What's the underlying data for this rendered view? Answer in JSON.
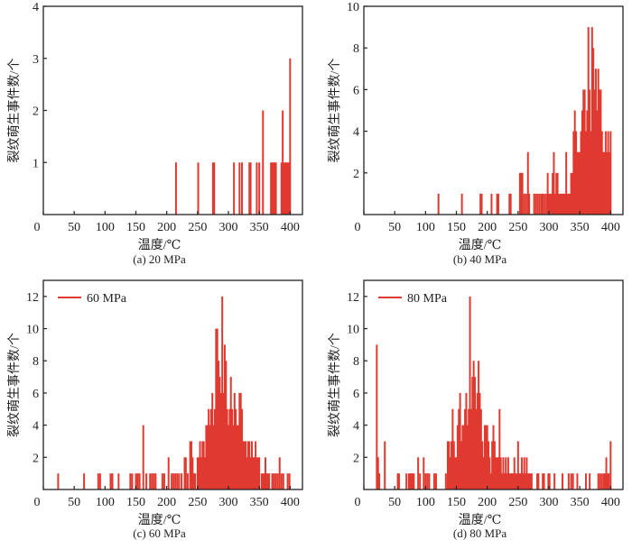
{
  "figure": {
    "bar_color": "#e03a30",
    "axis_color": "#222222"
  },
  "chart_data": [
    {
      "type": "bar",
      "id": "a",
      "caption": "(a) 20 MPa",
      "title": "",
      "xlabel": "温度/℃",
      "ylabel": "裂纹萌生事件数/个",
      "xlim": [
        0,
        420
      ],
      "ylim": [
        0,
        4
      ],
      "xticks": [
        0,
        50,
        100,
        150,
        200,
        250,
        300,
        350,
        400
      ],
      "yticks": [
        1,
        2,
        3,
        4
      ],
      "legend": null,
      "x": [
        215,
        251,
        275,
        277,
        309,
        318,
        322,
        334,
        336,
        346,
        350,
        356,
        369,
        371,
        373,
        375,
        377,
        386,
        388,
        390,
        392,
        394,
        396,
        398,
        400
      ],
      "values": [
        1,
        1,
        1,
        1,
        1,
        1,
        1,
        1,
        1,
        1,
        1,
        2,
        1,
        1,
        1,
        1,
        1,
        1,
        2,
        1,
        1,
        1,
        1,
        1,
        3
      ]
    },
    {
      "type": "bar",
      "id": "b",
      "caption": "(b) 40 MPa",
      "title": "",
      "xlabel": "温度/℃",
      "ylabel": "裂纹萌生事件数/个",
      "xlim": [
        0,
        420
      ],
      "ylim": [
        0,
        10
      ],
      "xticks": [
        0,
        50,
        100,
        150,
        200,
        250,
        300,
        350,
        400
      ],
      "yticks": [
        2,
        4,
        6,
        8,
        10
      ],
      "legend": null,
      "x": [
        121,
        159,
        189,
        191,
        207,
        216,
        218,
        236,
        238,
        253,
        255,
        257,
        260,
        263,
        266,
        268,
        276,
        279,
        282,
        285,
        288,
        290,
        293,
        296,
        298,
        300,
        302,
        304,
        306,
        308,
        310,
        312,
        314,
        316,
        318,
        320,
        322,
        324,
        326,
        328,
        330,
        332,
        334,
        336,
        338,
        340,
        342,
        344,
        346,
        348,
        350,
        352,
        354,
        356,
        358,
        360,
        362,
        364,
        366,
        368,
        370,
        372,
        374,
        376,
        378,
        380,
        382,
        384,
        386,
        388,
        390,
        392,
        394,
        396,
        398,
        400
      ],
      "values": [
        1,
        1,
        1,
        1,
        1,
        1,
        1,
        1,
        1,
        2,
        2,
        2,
        1,
        1,
        3,
        1,
        1,
        1,
        1,
        1,
        1,
        1,
        1,
        1,
        2,
        1,
        1,
        1,
        2,
        3,
        1,
        2,
        2,
        1,
        1,
        1,
        1,
        1,
        1,
        3,
        1,
        1,
        1,
        2,
        2,
        4,
        5,
        4,
        3,
        3,
        3,
        4,
        5,
        6,
        6,
        4,
        5,
        9,
        6,
        4,
        9,
        8,
        6,
        7,
        5,
        7,
        6,
        6,
        4,
        3,
        3,
        4,
        3,
        4,
        3,
        4
      ]
    },
    {
      "type": "bar",
      "id": "c",
      "caption": "(c) 60 MPa",
      "title": "",
      "xlabel": "温度/℃",
      "ylabel": "裂纹萌生事件数/个",
      "xlim": [
        0,
        420
      ],
      "ylim": [
        0,
        13
      ],
      "xticks": [
        0,
        50,
        100,
        150,
        200,
        250,
        300,
        350,
        400
      ],
      "yticks": [
        2,
        4,
        6,
        8,
        10,
        12
      ],
      "legend": {
        "label": "60 MPa",
        "position": "top-left"
      },
      "x": [
        24,
        66,
        89,
        92,
        109,
        112,
        122,
        141,
        144,
        150,
        153,
        156,
        162,
        167,
        173,
        176,
        179,
        182,
        193,
        196,
        203,
        208,
        211,
        214,
        217,
        220,
        224,
        229,
        231,
        234,
        238,
        240,
        242,
        244,
        246,
        250,
        252,
        254,
        256,
        258,
        260,
        262,
        264,
        266,
        268,
        270,
        272,
        274,
        276,
        278,
        280,
        282,
        284,
        286,
        288,
        290,
        292,
        294,
        296,
        298,
        300,
        302,
        304,
        306,
        308,
        310,
        312,
        314,
        316,
        318,
        320,
        322,
        324,
        326,
        328,
        330,
        332,
        334,
        336,
        338,
        340,
        342,
        344,
        346,
        348,
        350,
        354,
        356,
        358,
        360,
        362,
        364,
        366,
        371,
        374,
        377,
        380,
        383,
        386,
        389,
        396,
        399
      ],
      "values": [
        1,
        1,
        1,
        1,
        1,
        1,
        1,
        1,
        1,
        1,
        1,
        1,
        4,
        1,
        1,
        1,
        1,
        1,
        1,
        1,
        2,
        1,
        1,
        1,
        1,
        1,
        1,
        2,
        2,
        1,
        3,
        3,
        2,
        1,
        1,
        2,
        2,
        3,
        2,
        3,
        3,
        2,
        4,
        4,
        5,
        4,
        5,
        6,
        4,
        5,
        10,
        10,
        8,
        7,
        6,
        12,
        6,
        9,
        8,
        5,
        4,
        5,
        7,
        5,
        4,
        6,
        5,
        4,
        4,
        6,
        6,
        5,
        3,
        3,
        3,
        2,
        3,
        3,
        2,
        3,
        2,
        2,
        3,
        2,
        2,
        2,
        1,
        1,
        1,
        2,
        1,
        1,
        1,
        1,
        1,
        1,
        1,
        2,
        1,
        1,
        1,
        1
      ]
    },
    {
      "type": "bar",
      "id": "d",
      "caption": "(d) 80 MPa",
      "title": "",
      "xlabel": "温度/℃",
      "ylabel": "裂纹萌生事件数/个",
      "xlim": [
        0,
        420
      ],
      "ylim": [
        0,
        13
      ],
      "xticks": [
        0,
        50,
        100,
        150,
        200,
        250,
        300,
        350,
        400
      ],
      "yticks": [
        2,
        4,
        6,
        8,
        10,
        12
      ],
      "legend": {
        "label": "80 MPa",
        "position": "top-left"
      },
      "x": [
        21,
        23,
        25,
        34,
        55,
        57,
        69,
        73,
        75,
        77,
        79,
        81,
        88,
        91,
        97,
        100,
        103,
        106,
        114,
        117,
        133,
        136,
        138,
        140,
        142,
        144,
        146,
        148,
        150,
        152,
        154,
        156,
        158,
        160,
        162,
        164,
        166,
        168,
        170,
        172,
        174,
        176,
        178,
        180,
        182,
        184,
        186,
        188,
        190,
        192,
        194,
        196,
        198,
        200,
        202,
        204,
        206,
        208,
        210,
        212,
        214,
        216,
        218,
        220,
        222,
        224,
        226,
        228,
        230,
        232,
        234,
        236,
        238,
        240,
        242,
        244,
        246,
        248,
        250,
        252,
        254,
        256,
        258,
        260,
        262,
        264,
        266,
        268,
        270,
        272,
        281,
        283,
        290,
        292,
        299,
        301,
        309,
        322,
        332,
        336,
        339,
        346,
        360,
        366,
        380,
        383,
        386,
        389,
        391,
        393,
        395,
        397,
        400
      ],
      "values": [
        9,
        2,
        1,
        3,
        1,
        1,
        1,
        1,
        1,
        1,
        1,
        1,
        2,
        1,
        2,
        1,
        1,
        1,
        1,
        1,
        1,
        3,
        3,
        2,
        3,
        5,
        3,
        2,
        2,
        4,
        5,
        6,
        3,
        4,
        4,
        5,
        6,
        4,
        5,
        12,
        5,
        7,
        8,
        7,
        5,
        6,
        8,
        6,
        5,
        3,
        2,
        4,
        4,
        4,
        3,
        2,
        1,
        3,
        4,
        3,
        2,
        2,
        2,
        5,
        2,
        1,
        2,
        1,
        2,
        1,
        2,
        1,
        1,
        1,
        1,
        2,
        1,
        1,
        3,
        1,
        1,
        2,
        1,
        2,
        1,
        2,
        1,
        1,
        1,
        1,
        1,
        1,
        1,
        1,
        1,
        1,
        1,
        1,
        1,
        1,
        1,
        1,
        1,
        1,
        1,
        1,
        1,
        1,
        1,
        2,
        1,
        1,
        3
      ]
    }
  ]
}
